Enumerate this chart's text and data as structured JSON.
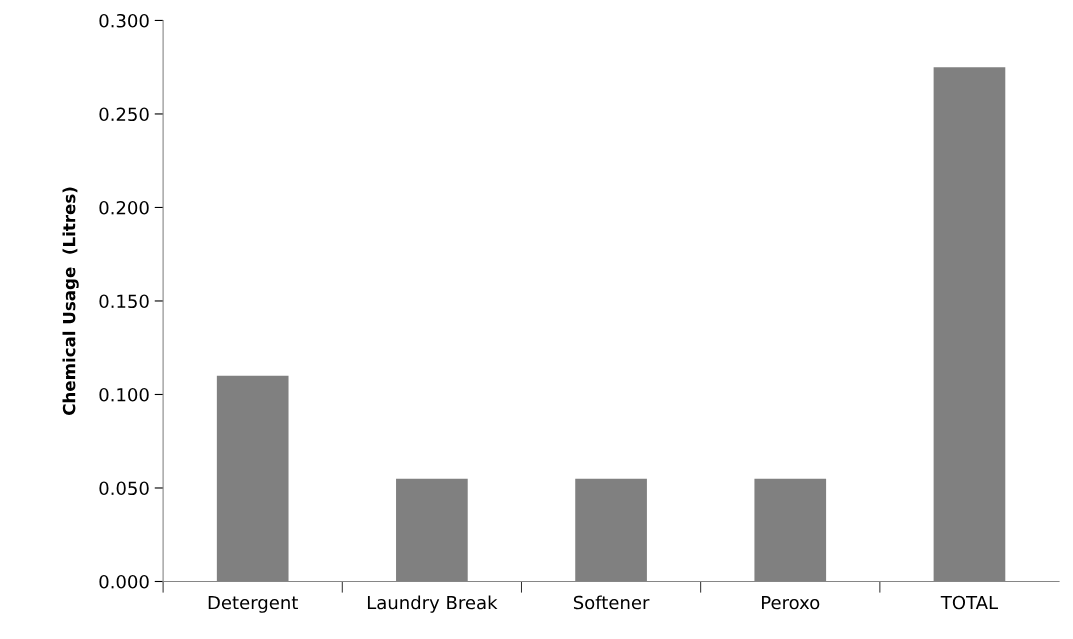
{
  "chart_data": {
    "type": "bar",
    "ylabel": "Chemical Usage  (Litres)",
    "categories": [
      "Detergent",
      "Laundry Break",
      "Softener",
      "Peroxo",
      "TOTAL"
    ],
    "values": [
      0.11,
      0.055,
      0.055,
      0.055,
      0.275
    ],
    "color": "#808080",
    "ylim": [
      0,
      0.3
    ],
    "yticks": [
      {
        "value": 0,
        "label": "0.000"
      },
      {
        "value": 0.05,
        "label": "0.050"
      },
      {
        "value": 0.1,
        "label": "0.100"
      },
      {
        "value": 0.15,
        "label": "0.150"
      },
      {
        "value": 0.2,
        "label": "0.200"
      },
      {
        "value": 0.25,
        "label": "0.250"
      },
      {
        "value": 0.3,
        "label": "0.300"
      }
    ],
    "grid": false,
    "legend": false
  }
}
